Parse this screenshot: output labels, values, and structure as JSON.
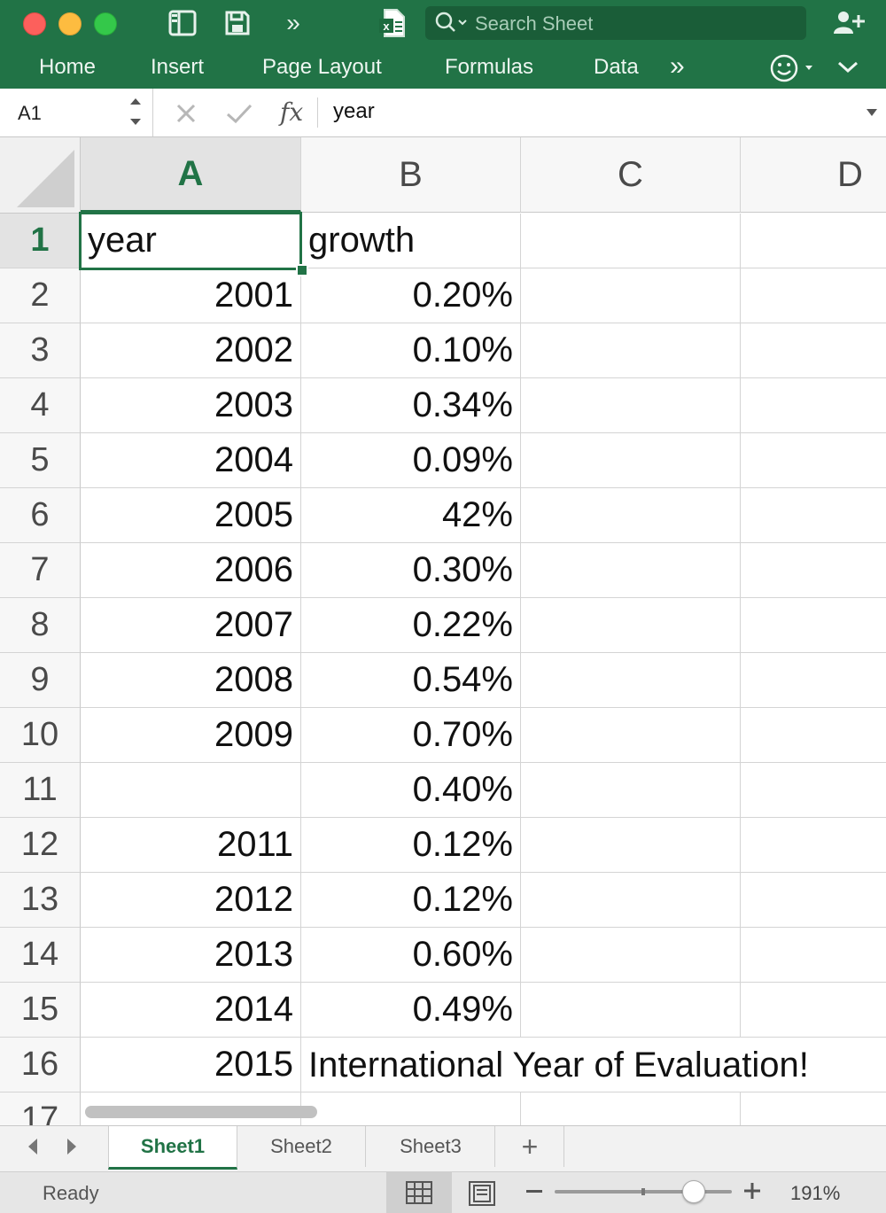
{
  "colors": {
    "accent": "#217346",
    "ribbon_text": "#eef6f1",
    "gridline": "#d4d4d4"
  },
  "titlebar": {
    "icons": [
      "sidebar-icon",
      "save-icon",
      "more-icon",
      "excel-file-icon",
      "add-person-icon"
    ],
    "search_placeholder": "Search Sheet"
  },
  "ribbon": {
    "tabs": [
      "Home",
      "Insert",
      "Page Layout",
      "Formulas",
      "Data"
    ],
    "overflow_icon": "chevron-double-right-icon",
    "feedback_icon": "smiley-icon"
  },
  "formula_bar": {
    "name_box": "A1",
    "fx_label": "fx",
    "formula": "year"
  },
  "grid": {
    "columns": [
      "A",
      "B",
      "C",
      "D"
    ],
    "active_column": "A",
    "active_row": "1",
    "rows": [
      {
        "n": "1",
        "a": "year",
        "b": "growth"
      },
      {
        "n": "2",
        "a": "2001",
        "b": "0.20%"
      },
      {
        "n": "3",
        "a": "2002",
        "b": "0.10%"
      },
      {
        "n": "4",
        "a": "2003",
        "b": "0.34%"
      },
      {
        "n": "5",
        "a": "2004",
        "b": "0.09%"
      },
      {
        "n": "6",
        "a": "2005",
        "b": "42%"
      },
      {
        "n": "7",
        "a": "2006",
        "b": "0.30%"
      },
      {
        "n": "8",
        "a": "2007",
        "b": "0.22%"
      },
      {
        "n": "9",
        "a": "2008",
        "b": "0.54%"
      },
      {
        "n": "10",
        "a": "2009",
        "b": "0.70%"
      },
      {
        "n": "11",
        "a": "",
        "b": "0.40%"
      },
      {
        "n": "12",
        "a": "2011",
        "b": "0.12%"
      },
      {
        "n": "13",
        "a": "2012",
        "b": "0.12%"
      },
      {
        "n": "14",
        "a": "2013",
        "b": "0.60%"
      },
      {
        "n": "15",
        "a": "2014",
        "b": "0.49%"
      },
      {
        "n": "16",
        "a": "2015",
        "b": "International Year of Evaluation!"
      },
      {
        "n": "17",
        "a": "",
        "b": ""
      }
    ]
  },
  "sheets": {
    "tabs": [
      "Sheet1",
      "Sheet2",
      "Sheet3"
    ],
    "active": "Sheet1",
    "add_label": "+"
  },
  "status": {
    "text": "Ready",
    "zoom": "191%",
    "zoom_level": 0.78
  }
}
